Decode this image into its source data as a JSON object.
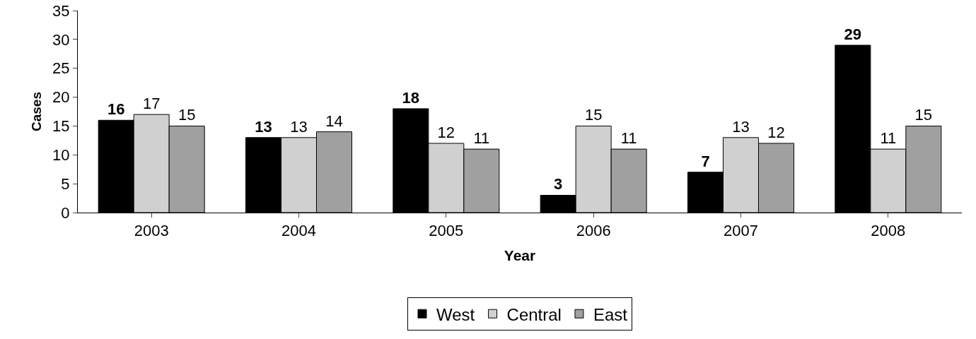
{
  "chart_data": {
    "type": "bar",
    "xlabel": "Year",
    "ylabel": "Cases",
    "categories": [
      "2003",
      "2004",
      "2005",
      "2006",
      "2007",
      "2008"
    ],
    "series": [
      {
        "name": "West",
        "color": "#000000",
        "values": [
          16,
          13,
          18,
          3,
          7,
          29
        ]
      },
      {
        "name": "Central",
        "color": "#d0d0d0",
        "values": [
          17,
          13,
          12,
          15,
          13,
          11
        ]
      },
      {
        "name": "East",
        "color": "#a0a0a0",
        "values": [
          15,
          14,
          11,
          11,
          12,
          15
        ]
      }
    ],
    "ylim": [
      0,
      35
    ],
    "yticks": [
      0,
      5,
      10,
      15,
      20,
      25,
      30,
      35
    ],
    "grid": false,
    "legend": "bottom",
    "data_labels": true
  }
}
